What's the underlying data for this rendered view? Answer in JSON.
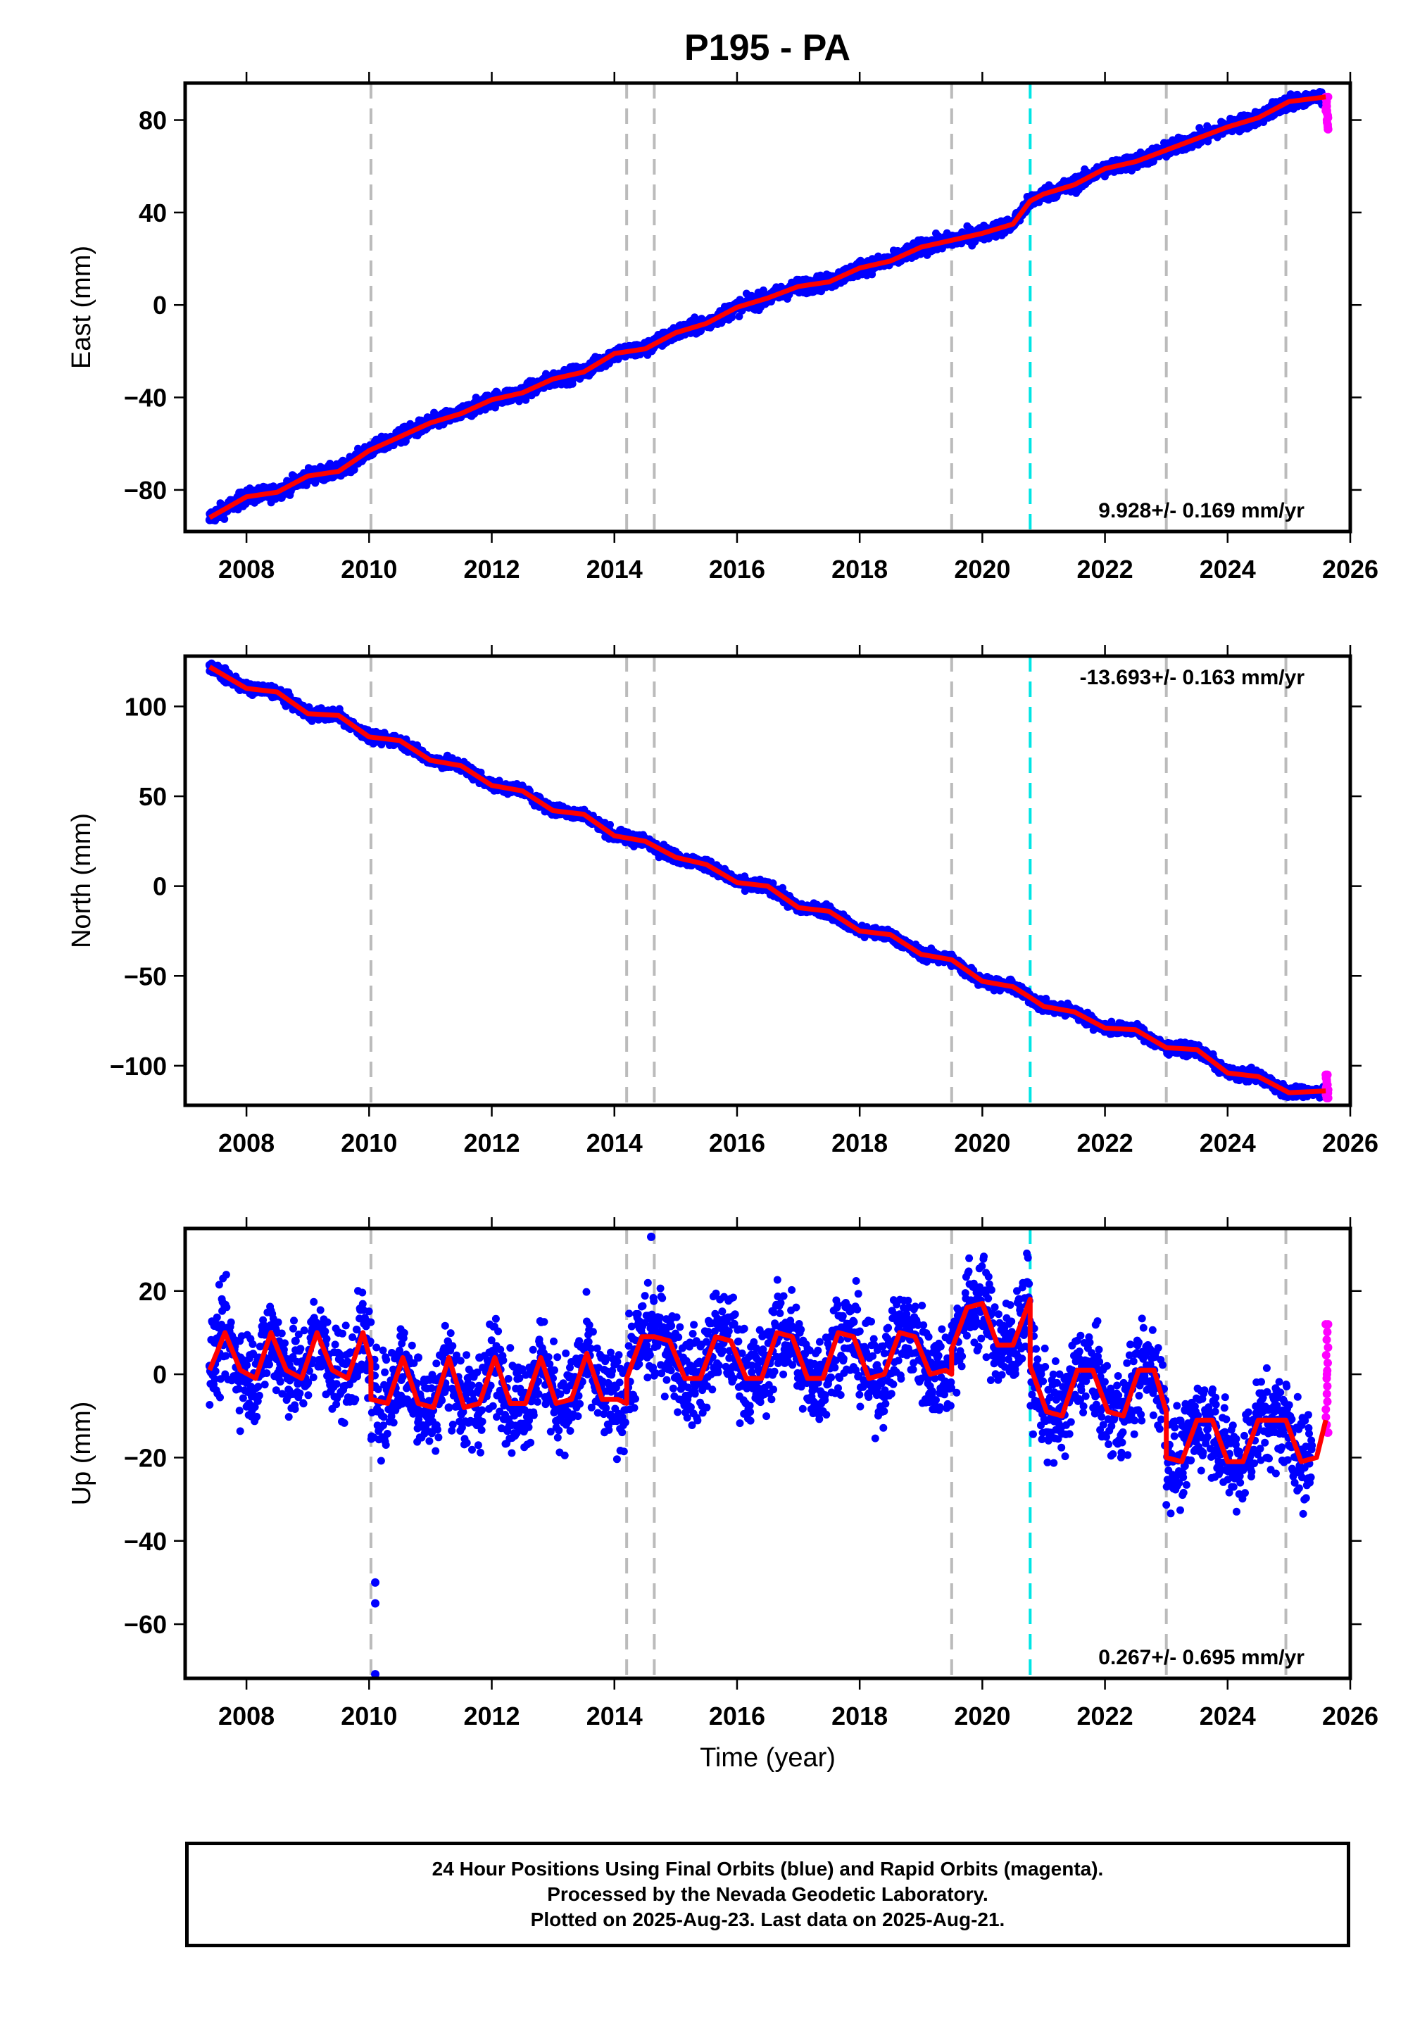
{
  "title": "P195 - PA",
  "footer": {
    "line1": "24 Hour Positions Using Final Orbits (blue) and Rapid Orbits (magenta).",
    "line2": "Processed by the Nevada Geodetic Laboratory.",
    "line3": "Plotted on 2025-Aug-23. Last data on 2025-Aug-21."
  },
  "colors": {
    "final_orbits": "#0000ff",
    "rapid_orbits": "#ff00ff",
    "model": "#ff0000",
    "equipment_change": "#bbbbbb",
    "antenna_change": "#00e5e5"
  },
  "chart_data": [
    {
      "type": "scatter",
      "component": "east",
      "ylabel": "East (mm)",
      "xlabel": "",
      "xlim": [
        2007.0,
        2026.0
      ],
      "ylim": [
        -98,
        96
      ],
      "xticks": [
        2008,
        2010,
        2012,
        2014,
        2016,
        2018,
        2020,
        2022,
        2024,
        2026
      ],
      "yticks": [
        -80,
        -40,
        0,
        40,
        80
      ],
      "rate_text": "9.928+/- 0.169 mm/yr",
      "equipment_change_years": [
        2010.03,
        2014.2,
        2014.65,
        2019.5,
        2023.0,
        2024.95
      ],
      "antenna_change_years": [
        2020.78
      ],
      "series": [
        {
          "name": "Final Orbits (blue)",
          "x": [
            2007.4,
            2008.0,
            2008.5,
            2009.0,
            2009.5,
            2010.0,
            2010.5,
            2011.0,
            2011.5,
            2012.0,
            2012.5,
            2013.0,
            2013.5,
            2014.0,
            2014.5,
            2015.0,
            2015.5,
            2016.0,
            2016.5,
            2017.0,
            2017.5,
            2018.0,
            2018.5,
            2019.0,
            2019.5,
            2020.0,
            2020.5,
            2020.78,
            2021.0,
            2021.5,
            2022.0,
            2022.5,
            2023.0,
            2023.5,
            2024.0,
            2024.5,
            2025.0,
            2025.5
          ],
          "y": [
            -93,
            -84,
            -81,
            -75,
            -72,
            -63,
            -57,
            -52,
            -47,
            -42,
            -38,
            -33,
            -29,
            -21,
            -19,
            -12,
            -8,
            -1,
            3,
            8,
            10,
            16,
            19,
            25,
            28,
            31,
            35,
            43,
            47,
            51,
            59,
            62,
            67,
            72,
            77,
            81,
            87,
            89
          ]
        },
        {
          "name": "Rapid Orbits (magenta)",
          "x": [
            2025.6,
            2025.62,
            2025.64
          ],
          "y": [
            90,
            84,
            76
          ]
        },
        {
          "name": "Model",
          "x": [
            2007.4,
            2008.0,
            2008.5,
            2009.0,
            2009.5,
            2010.0,
            2010.5,
            2011.0,
            2011.5,
            2012.0,
            2012.5,
            2013.0,
            2013.5,
            2014.0,
            2014.5,
            2015.0,
            2015.5,
            2016.0,
            2016.5,
            2017.0,
            2017.5,
            2018.0,
            2018.5,
            2019.0,
            2019.5,
            2020.0,
            2020.5,
            2020.78,
            2021.0,
            2021.5,
            2022.0,
            2022.5,
            2023.0,
            2023.5,
            2024.0,
            2024.5,
            2025.0,
            2025.6
          ],
          "y": [
            -92,
            -83,
            -81,
            -74,
            -72,
            -63,
            -57,
            -51,
            -47,
            -41,
            -38,
            -32,
            -29,
            -21,
            -19,
            -12,
            -8,
            -1,
            3,
            8,
            10,
            16,
            19,
            25,
            28,
            31,
            35,
            45,
            48,
            52,
            59,
            62,
            67,
            72,
            77,
            81,
            88,
            90
          ]
        }
      ]
    },
    {
      "type": "scatter",
      "component": "north",
      "ylabel": "North (mm)",
      "xlabel": "",
      "xlim": [
        2007.0,
        2026.0
      ],
      "ylim": [
        -122,
        128
      ],
      "xticks": [
        2008,
        2010,
        2012,
        2014,
        2016,
        2018,
        2020,
        2022,
        2024,
        2026
      ],
      "yticks": [
        -100,
        -50,
        0,
        50,
        100
      ],
      "rate_text": "-13.693+/- 0.163 mm/yr",
      "equipment_change_years": [
        2010.03,
        2014.2,
        2014.65,
        2019.5,
        2023.0,
        2024.95
      ],
      "antenna_change_years": [
        2020.78
      ],
      "series": [
        {
          "name": "Final Orbits (blue)",
          "x": [
            2007.4,
            2008.0,
            2008.5,
            2009.0,
            2009.5,
            2010.0,
            2010.5,
            2011.0,
            2011.5,
            2012.0,
            2012.5,
            2013.0,
            2013.5,
            2014.0,
            2014.5,
            2015.0,
            2015.5,
            2016.0,
            2016.5,
            2017.0,
            2017.5,
            2018.0,
            2018.5,
            2019.0,
            2019.5,
            2020.0,
            2020.5,
            2020.78,
            2021.0,
            2021.5,
            2022.0,
            2022.5,
            2023.0,
            2023.5,
            2024.0,
            2024.5,
            2025.0,
            2025.5
          ],
          "y": [
            123,
            110,
            108,
            96,
            95,
            83,
            81,
            70,
            67,
            56,
            53,
            42,
            40,
            28,
            25,
            16,
            12,
            2,
            0,
            -12,
            -14,
            -25,
            -27,
            -38,
            -41,
            -53,
            -56,
            -63,
            -68,
            -70,
            -79,
            -80,
            -90,
            -91,
            -104,
            -106,
            -115,
            -115
          ]
        },
        {
          "name": "Rapid Orbits (magenta)",
          "x": [
            2025.6,
            2025.62,
            2025.64
          ],
          "y": [
            -105,
            -112,
            -118
          ]
        },
        {
          "name": "Model",
          "x": [
            2007.4,
            2008.0,
            2008.5,
            2009.0,
            2009.5,
            2010.0,
            2010.5,
            2011.0,
            2011.5,
            2012.0,
            2012.5,
            2013.0,
            2013.5,
            2014.0,
            2014.5,
            2015.0,
            2015.5,
            2016.0,
            2016.5,
            2017.0,
            2017.5,
            2018.0,
            2018.5,
            2019.0,
            2019.5,
            2020.0,
            2020.5,
            2020.78,
            2021.0,
            2021.5,
            2022.0,
            2022.5,
            2023.0,
            2023.5,
            2024.0,
            2024.5,
            2025.0,
            2025.6
          ],
          "y": [
            122,
            110,
            108,
            96,
            95,
            83,
            81,
            70,
            67,
            56,
            53,
            42,
            40,
            28,
            25,
            16,
            12,
            2,
            0,
            -12,
            -14,
            -25,
            -27,
            -38,
            -41,
            -53,
            -56,
            -62,
            -67,
            -70,
            -79,
            -80,
            -90,
            -91,
            -104,
            -106,
            -115,
            -114
          ]
        }
      ]
    },
    {
      "type": "scatter",
      "component": "up",
      "ylabel": "Up (mm)",
      "xlabel": "Time (year)",
      "xlim": [
        2007.0,
        2026.0
      ],
      "ylim": [
        -73,
        35
      ],
      "xticks": [
        2008,
        2010,
        2012,
        2014,
        2016,
        2018,
        2020,
        2022,
        2024,
        2026
      ],
      "yticks": [
        -60,
        -40,
        -20,
        0,
        20
      ],
      "rate_text": "0.267+/- 0.695 mm/yr",
      "equipment_change_years": [
        2010.03,
        2014.2,
        2014.65,
        2019.5,
        2023.0,
        2024.95
      ],
      "antenna_change_years": [
        2020.78
      ],
      "series": [
        {
          "name": "Final Orbits (blue)",
          "x": [
            2007.4,
            2007.6,
            2007.8,
            2008.0,
            2008.3,
            2008.5,
            2008.8,
            2009.0,
            2009.3,
            2009.5,
            2009.8,
            2010.1,
            2010.1,
            2010.1,
            2010.3,
            2010.8,
            2011.3,
            2011.8,
            2012.3,
            2012.8,
            2013.3,
            2013.8,
            2014.3,
            2014.6,
            2014.8,
            2015.3,
            2015.8,
            2016.3,
            2016.8,
            2017.3,
            2017.8,
            2018.3,
            2018.8,
            2019.3,
            2019.8,
            2020.3,
            2020.6,
            2021.0,
            2021.3,
            2021.8,
            2022.3,
            2022.8,
            2023.3,
            2023.8,
            2024.3,
            2024.8,
            2025.3
          ],
          "y": [
            2,
            10,
            6,
            -2,
            3,
            10,
            8,
            -2,
            4,
            10,
            0,
            -50,
            -55,
            -72,
            -6,
            4,
            -8,
            4,
            -8,
            4,
            -7,
            4,
            -5,
            33,
            9,
            -2,
            9,
            -2,
            10,
            -1,
            10,
            0,
            12,
            1,
            17,
            7,
            18,
            -8,
            -10,
            0,
            -10,
            1,
            -22,
            -12,
            -22,
            -12,
            -20
          ]
        },
        {
          "name": "Rapid Orbits (magenta)",
          "x": [
            2025.6,
            2025.62,
            2025.64
          ],
          "y": [
            12,
            0,
            -14
          ]
        },
        {
          "name": "Model",
          "x": [
            2007.4,
            2007.65,
            2007.9,
            2008.15,
            2008.4,
            2008.65,
            2008.9,
            2009.15,
            2009.4,
            2009.65,
            2009.9,
            2010.03,
            2010.03,
            2010.3,
            2010.55,
            2010.8,
            2011.05,
            2011.3,
            2011.55,
            2011.8,
            2012.05,
            2012.3,
            2012.55,
            2012.8,
            2013.05,
            2013.3,
            2013.55,
            2013.8,
            2014.05,
            2014.2,
            2014.2,
            2014.45,
            2014.65,
            2014.65,
            2014.9,
            2015.15,
            2015.4,
            2015.65,
            2015.9,
            2016.15,
            2016.4,
            2016.65,
            2016.9,
            2017.15,
            2017.4,
            2017.65,
            2017.9,
            2018.15,
            2018.4,
            2018.65,
            2018.9,
            2019.15,
            2019.4,
            2019.5,
            2019.5,
            2019.75,
            2020.0,
            2020.25,
            2020.5,
            2020.78,
            2020.78,
            2021.05,
            2021.3,
            2021.55,
            2021.8,
            2022.05,
            2022.3,
            2022.55,
            2022.8,
            2023.0,
            2023.0,
            2023.25,
            2023.5,
            2023.75,
            2024.0,
            2024.25,
            2024.5,
            2024.75,
            2024.95,
            2024.95,
            2025.2,
            2025.45,
            2025.6
          ],
          "y": [
            1,
            10,
            1,
            -1,
            10,
            1,
            -1,
            10,
            1,
            -1,
            10,
            3,
            -6,
            -7,
            4,
            -7,
            -8,
            4,
            -8,
            -7,
            4,
            -7,
            -7,
            4,
            -7,
            -6,
            5,
            -6,
            -6,
            -7,
            -1,
            9,
            9,
            9,
            8,
            -1,
            -1,
            9,
            8,
            -1,
            -1,
            10,
            9,
            -1,
            -1,
            10,
            9,
            -1,
            0,
            10,
            9,
            0,
            1,
            0,
            6,
            16,
            17,
            7,
            7,
            18,
            2,
            -9,
            -10,
            1,
            1,
            -9,
            -10,
            1,
            1,
            -9,
            -20,
            -21,
            -11,
            -11,
            -21,
            -21,
            -11,
            -11,
            -11,
            -11,
            -21,
            -20,
            -11
          ]
        }
      ]
    }
  ]
}
